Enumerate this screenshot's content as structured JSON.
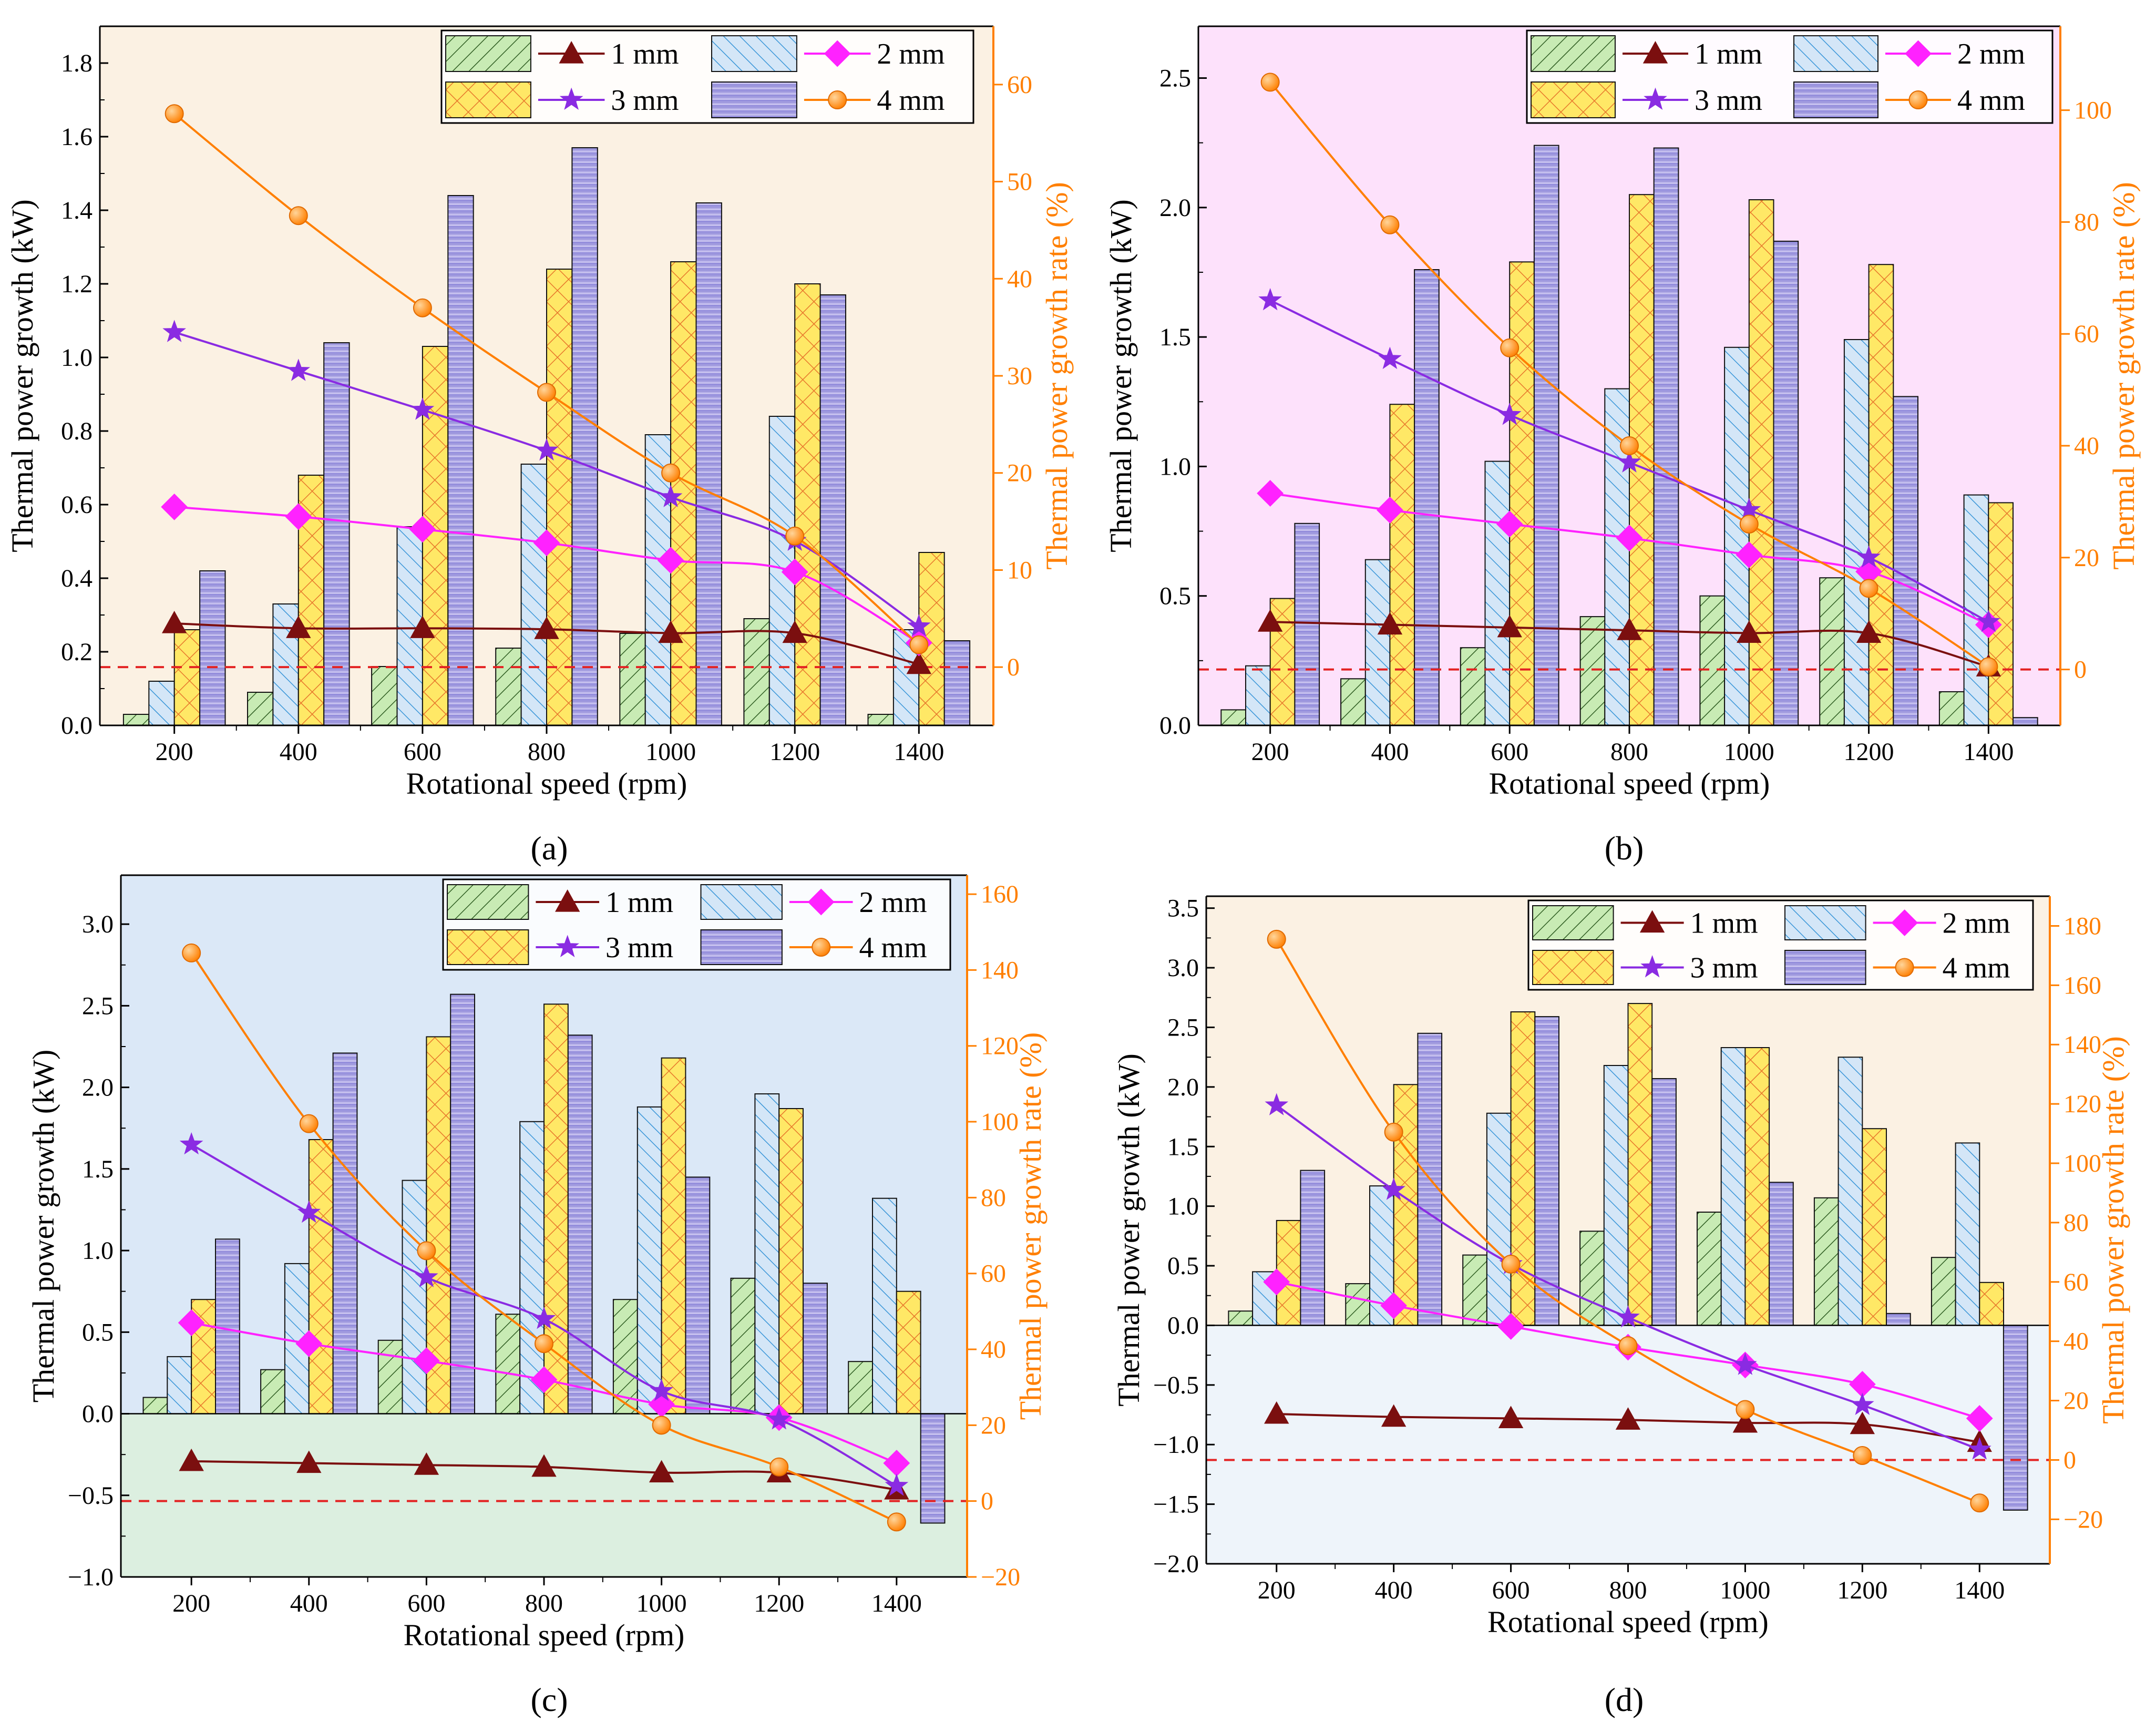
{
  "colors": {
    "bg_cream": "#fbf1e3",
    "bg_pink": "#fde1fb",
    "bg_blue": "#dbe8f7",
    "bg_green": "#dcefe0",
    "bg_lightblue": "#eef4fa",
    "s1_line": "#7b0f0f",
    "s2_line": "#ff22ff",
    "s3_line": "#8a2be2",
    "s4_line": "#ff7f00",
    "zero_line": "#e32222",
    "b1_fill": "#c8ebb4",
    "b2_fill": "#d4e6f7",
    "b3_fill": "#ffe866",
    "b4_fill": "#9e95dc",
    "b2_hatch": "#3a96d8",
    "b3_hatch": "#e7772c",
    "axis_right": "#ff7f00"
  },
  "chart_data": [
    {
      "type": "bar+line",
      "panel_label": "(a)",
      "background": "cream",
      "xlabel": "Rotational speed (rpm)",
      "ylabel": "Thermal power growth (kW)",
      "y2label": "Thermal power growth rate (%)",
      "categories": [
        "200",
        "400",
        "600",
        "800",
        "1000",
        "1200",
        "1400"
      ],
      "ylim": [
        0,
        1.9
      ],
      "yticks": [
        0.0,
        0.2,
        0.4,
        0.6,
        0.8,
        1.0,
        1.2,
        1.4,
        1.6,
        1.8
      ],
      "ytick_labels": [
        "0.0",
        "0.2",
        "0.4",
        "0.6",
        "0.8",
        "1.0",
        "1.2",
        "1.4",
        "1.6",
        "1.8"
      ],
      "y2lim": [
        -6,
        66
      ],
      "y2ticks": [
        0,
        10,
        20,
        30,
        40,
        50,
        60
      ],
      "y2tick_labels": [
        "0",
        "10",
        "20",
        "30",
        "40",
        "50",
        "60"
      ],
      "bars": [
        {
          "name": "1 mm",
          "values": [
            0.03,
            0.09,
            0.16,
            0.21,
            0.25,
            0.29,
            0.03
          ]
        },
        {
          "name": "2 mm",
          "values": [
            0.12,
            0.33,
            0.54,
            0.71,
            0.79,
            0.84,
            0.26
          ]
        },
        {
          "name": "3 mm",
          "values": [
            0.26,
            0.68,
            1.03,
            1.24,
            1.26,
            1.2,
            0.47
          ]
        },
        {
          "name": "4 mm",
          "values": [
            0.42,
            1.04,
            1.44,
            1.57,
            1.42,
            1.17,
            0.23
          ]
        }
      ],
      "lines": [
        {
          "name": "1 mm",
          "values": [
            4.5,
            4.0,
            4.0,
            3.9,
            3.5,
            3.5,
            0.3
          ]
        },
        {
          "name": "2 mm",
          "values": [
            16.5,
            15.5,
            14.2,
            12.8,
            11.0,
            9.8,
            2.5
          ]
        },
        {
          "name": "3 mm",
          "values": [
            34.5,
            30.5,
            26.5,
            22.3,
            17.5,
            13.0,
            4.2
          ]
        },
        {
          "name": "4 mm",
          "values": [
            57.0,
            46.5,
            37.0,
            28.3,
            20.0,
            13.5,
            2.3
          ]
        }
      ],
      "legend": {
        "labels": [
          "1 mm",
          "2 mm",
          "3 mm",
          "4 mm"
        ],
        "placement": "top-right"
      }
    },
    {
      "type": "bar+line",
      "panel_label": "(b)",
      "background": "pink",
      "xlabel": "Rotational speed (rpm)",
      "ylabel": "Thermal power growth (kW)",
      "y2label": "Thermal power growth rate (%)",
      "categories": [
        "200",
        "400",
        "600",
        "800",
        "1000",
        "1200",
        "1400"
      ],
      "ylim": [
        0,
        2.7
      ],
      "yticks": [
        0.0,
        0.5,
        1.0,
        1.5,
        2.0,
        2.5
      ],
      "ytick_labels": [
        "0.0",
        "0.5",
        "1.0",
        "1.5",
        "2.0",
        "2.5"
      ],
      "y2lim": [
        -10,
        115
      ],
      "y2ticks": [
        0,
        20,
        40,
        60,
        80,
        100
      ],
      "y2tick_labels": [
        "0",
        "20",
        "40",
        "60",
        "80",
        "100"
      ],
      "bars": [
        {
          "name": "1 mm",
          "values": [
            0.06,
            0.18,
            0.3,
            0.42,
            0.5,
            0.57,
            0.13
          ]
        },
        {
          "name": "2 mm",
          "values": [
            0.23,
            0.64,
            1.02,
            1.3,
            1.46,
            1.49,
            0.89
          ]
        },
        {
          "name": "3 mm",
          "values": [
            0.49,
            1.24,
            1.79,
            2.05,
            2.03,
            1.78,
            0.86
          ]
        },
        {
          "name": "4 mm",
          "values": [
            0.78,
            1.76,
            2.24,
            2.23,
            1.87,
            1.27,
            0.03
          ]
        }
      ],
      "lines": [
        {
          "name": "1 mm",
          "values": [
            8.5,
            8.0,
            7.5,
            7.0,
            6.5,
            6.5,
            0.5
          ]
        },
        {
          "name": "2 mm",
          "values": [
            31.5,
            28.5,
            26.0,
            23.5,
            20.5,
            17.5,
            8.0
          ]
        },
        {
          "name": "3 mm",
          "values": [
            66.0,
            55.5,
            45.5,
            37.0,
            28.5,
            20.0,
            8.5
          ]
        },
        {
          "name": "4 mm",
          "values": [
            105.0,
            79.5,
            57.5,
            40.0,
            26.0,
            14.5,
            0.5
          ]
        }
      ],
      "legend": {
        "labels": [
          "1 mm",
          "2 mm",
          "3 mm",
          "4 mm"
        ],
        "placement": "top-right"
      }
    },
    {
      "type": "bar+line",
      "panel_label": "(c)",
      "background": "blue/green",
      "xlabel": "Rotational speed (rpm)",
      "ylabel": "Thermal power growth (kW)",
      "y2label": "Thermal power growth rate (%)",
      "categories": [
        "200",
        "400",
        "600",
        "800",
        "1000",
        "1200",
        "1400"
      ],
      "ylim": [
        -1.0,
        3.3
      ],
      "yticks": [
        -1.0,
        -0.5,
        0.0,
        0.5,
        1.0,
        1.5,
        2.0,
        2.5,
        3.0
      ],
      "ytick_labels": [
        "−1.0",
        "−0.5",
        "0.0",
        "0.5",
        "1.0",
        "1.5",
        "2.0",
        "2.5",
        "3.0"
      ],
      "y2lim": [
        -20,
        165
      ],
      "y2ticks": [
        -20,
        0,
        20,
        40,
        60,
        80,
        100,
        120,
        140,
        160
      ],
      "y2tick_labels": [
        "−20",
        "0",
        "20",
        "40",
        "60",
        "80",
        "100",
        "120",
        "140",
        "160"
      ],
      "bars": [
        {
          "name": "1 mm",
          "values": [
            0.1,
            0.27,
            0.45,
            0.61,
            0.7,
            0.83,
            0.32
          ]
        },
        {
          "name": "2 mm",
          "values": [
            0.35,
            0.92,
            1.43,
            1.79,
            1.88,
            1.96,
            1.32
          ]
        },
        {
          "name": "3 mm",
          "values": [
            0.7,
            1.68,
            2.31,
            2.51,
            2.18,
            1.87,
            0.75
          ]
        },
        {
          "name": "4 mm",
          "values": [
            1.07,
            2.21,
            2.57,
            2.32,
            1.45,
            0.8,
            -0.67
          ]
        }
      ],
      "lines": [
        {
          "name": "1 mm",
          "values": [
            10.5,
            10.0,
            9.5,
            9.0,
            7.5,
            7.5,
            3.0
          ]
        },
        {
          "name": "2 mm",
          "values": [
            47.0,
            41.5,
            37.0,
            32.0,
            25.5,
            22.0,
            10.0
          ]
        },
        {
          "name": "3 mm",
          "values": [
            94.0,
            76.0,
            59.0,
            48.0,
            29.0,
            21.5,
            4.0
          ]
        },
        {
          "name": "4 mm",
          "values": [
            144.5,
            99.5,
            66.0,
            41.5,
            20.0,
            9.0,
            -5.5
          ]
        }
      ],
      "legend": {
        "labels": [
          "1 mm",
          "2 mm",
          "3 mm",
          "4 mm"
        ],
        "placement": "top-right"
      }
    },
    {
      "type": "bar+line",
      "panel_label": "(d)",
      "background": "cream/lightblue",
      "xlabel": "Rotational speed (rpm)",
      "ylabel": "Thermal power growth (kW)",
      "y2label": "Thermal power growth rate (%)",
      "categories": [
        "200",
        "400",
        "600",
        "800",
        "1000",
        "1200",
        "1400"
      ],
      "ylim": [
        -2.0,
        3.6
      ],
      "yticks": [
        -2.0,
        -1.5,
        -1.0,
        -0.5,
        0.0,
        0.5,
        1.0,
        1.5,
        2.0,
        2.5,
        3.0,
        3.5
      ],
      "ytick_labels": [
        "−2.0",
        "−1.5",
        "−1.0",
        "−0.5",
        "0.0",
        "0.5",
        "1.0",
        "1.5",
        "2.0",
        "2.5",
        "3.0",
        "3.5"
      ],
      "y2lim": [
        -35,
        190
      ],
      "y2ticks": [
        -20,
        0,
        20,
        40,
        60,
        80,
        100,
        120,
        140,
        160,
        180
      ],
      "y2tick_labels": [
        "−20",
        "0",
        "20",
        "40",
        "60",
        "80",
        "100",
        "120",
        "140",
        "160",
        "180"
      ],
      "bars": [
        {
          "name": "1 mm",
          "values": [
            0.12,
            0.35,
            0.59,
            0.79,
            0.95,
            1.07,
            0.57
          ]
        },
        {
          "name": "2 mm",
          "values": [
            0.45,
            1.17,
            1.78,
            2.18,
            2.33,
            2.25,
            1.53
          ]
        },
        {
          "name": "3 mm",
          "values": [
            0.88,
            2.02,
            2.63,
            2.7,
            2.33,
            1.65,
            0.36
          ]
        },
        {
          "name": "4 mm",
          "values": [
            1.3,
            2.45,
            2.59,
            2.07,
            1.2,
            0.1,
            -1.55
          ]
        }
      ],
      "lines": [
        {
          "name": "1 mm",
          "values": [
            15.5,
            14.5,
            14.0,
            13.5,
            12.5,
            12.0,
            6.0
          ]
        },
        {
          "name": "2 mm",
          "values": [
            60.0,
            52.0,
            45.0,
            38.0,
            32.0,
            25.5,
            14.0
          ]
        },
        {
          "name": "3 mm",
          "values": [
            119.5,
            91.0,
            66.0,
            48.0,
            32.0,
            18.5,
            3.5
          ]
        },
        {
          "name": "4 mm",
          "values": [
            175.5,
            110.5,
            66.0,
            38.5,
            17.0,
            1.5,
            -14.5
          ]
        }
      ],
      "legend": {
        "labels": [
          "1 mm",
          "2 mm",
          "3 mm",
          "4 mm"
        ],
        "placement": "top-right"
      }
    }
  ]
}
